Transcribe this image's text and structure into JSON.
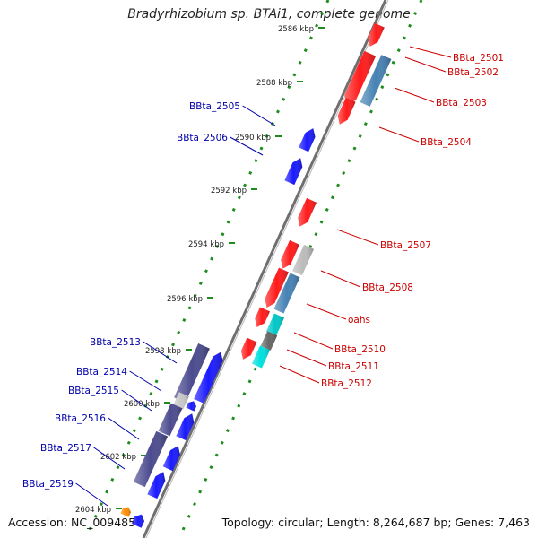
{
  "title": "Bradyrhizobium sp. BTAi1, complete genome",
  "accession": "Accession: NC_009485",
  "topology": "Topology: circular; Length: 8,264,687 bp; Genes: 7,463",
  "colors": {
    "background": "#ffffff",
    "backbone": "#888888",
    "tick": "#1e8c1e",
    "forward_gene": "#1a1aff",
    "reverse_gene": "#ff1a1a",
    "label_forward": "#0000aa",
    "label_reverse": "#cc0000"
  },
  "ticks": [
    "2586 kbp",
    "2588 kbp",
    "2590 kbp",
    "2592 kbp",
    "2594 kbp",
    "2596 kbp",
    "2598 kbp",
    "2600 kbp",
    "2602 kbp",
    "2604 kbp"
  ],
  "genes": [
    {
      "id": "BBta_2501",
      "strand": "reverse",
      "color": "#ff1a1a"
    },
    {
      "id": "BBta_2502",
      "strand": "reverse",
      "color": "#ff1a1a"
    },
    {
      "id": "BBta_2503",
      "strand": "reverse",
      "color": "#4682b4"
    },
    {
      "id": "BBta_2504",
      "strand": "reverse",
      "color": "#ff1a1a"
    },
    {
      "id": "BBta_2505",
      "strand": "forward",
      "color": "#1a1aff"
    },
    {
      "id": "BBta_2506",
      "strand": "forward",
      "color": "#1a1aff"
    },
    {
      "id": "BBta_2507",
      "strand": "reverse",
      "color": "#ff1a1a"
    },
    {
      "id": "BBta_2508",
      "strand": "reverse",
      "color": "#4682b4"
    },
    {
      "id": "oahs",
      "strand": "reverse",
      "color": "#00c8c8"
    },
    {
      "id": "BBta_2510",
      "strand": "reverse",
      "color": "#666666"
    },
    {
      "id": "BBta_2511",
      "strand": "reverse",
      "color": "#00e0e0"
    },
    {
      "id": "BBta_2512",
      "strand": "reverse",
      "color": "#ff1a1a"
    },
    {
      "id": "BBta_2513",
      "strand": "forward",
      "color": "#4b4b8f"
    },
    {
      "id": "BBta_2514",
      "strand": "forward",
      "color": "#c8c8c8"
    },
    {
      "id": "BBta_2515",
      "strand": "forward",
      "color": "#1a1aff"
    },
    {
      "id": "BBta_2516",
      "strand": "forward",
      "color": "#4b4b8f"
    },
    {
      "id": "BBta_2517",
      "strand": "forward",
      "color": "#4b4b8f"
    },
    {
      "id": "BBta_2519",
      "strand": "forward",
      "color": "#1a1aff"
    }
  ]
}
